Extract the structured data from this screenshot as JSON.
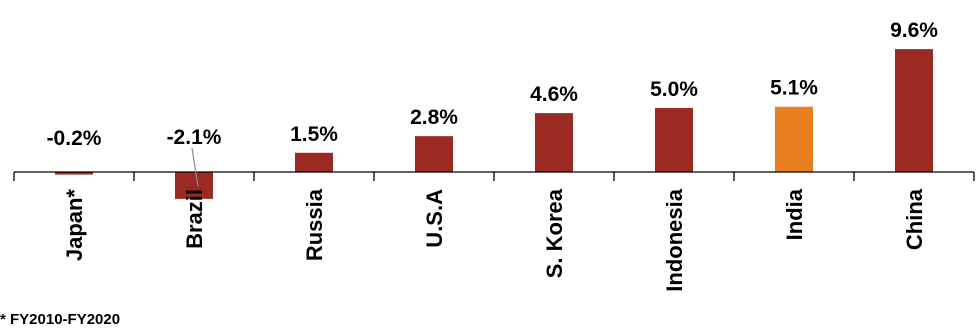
{
  "chart_data": {
    "type": "bar",
    "categories": [
      "Japan*",
      "Brazil",
      "Russia",
      "U.S.A",
      "S. Korea",
      "Indonesia",
      "India",
      "China"
    ],
    "values": [
      -0.2,
      -2.1,
      1.5,
      2.8,
      4.6,
      5.0,
      5.1,
      9.6
    ],
    "data_labels": [
      "-0.2%",
      "-2.1%",
      "1.5%",
      "2.8%",
      "4.6%",
      "5.0%",
      "5.1%",
      "9.6%"
    ],
    "bar_colors": [
      "#9a2a22",
      "#9a2a22",
      "#9a2a22",
      "#9a2a22",
      "#9a2a22",
      "#9a2a22",
      "#e57f1f",
      "#9a2a22"
    ],
    "title": "",
    "xlabel": "",
    "ylabel": "",
    "ylim": [
      -2.1,
      9.6
    ],
    "grid": false,
    "legend": "none"
  },
  "footnote": "* FY2010-FY2020"
}
